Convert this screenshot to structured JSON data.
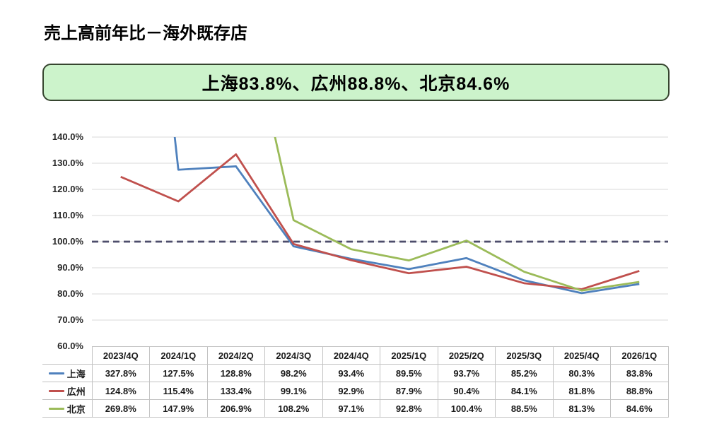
{
  "header": {
    "title": "売上高前年比－海外既存店"
  },
  "banner": {
    "text": "上海83.8%、広州88.8%、北京84.6%",
    "background": "#ccf3cb",
    "border_color": "#36452f"
  },
  "chart_data": {
    "type": "line",
    "title": "売上高前年比－海外既存店",
    "categories": [
      "2023/4Q",
      "2024/1Q",
      "2024/2Q",
      "2024/3Q",
      "2024/4Q",
      "2025/1Q",
      "2025/2Q",
      "2025/3Q",
      "2025/4Q",
      "2026/1Q"
    ],
    "series": [
      {
        "name": "上海",
        "color": "#4F81BD",
        "values": [
          327.8,
          127.5,
          128.8,
          98.2,
          93.4,
          89.5,
          93.7,
          85.2,
          80.3,
          83.8
        ]
      },
      {
        "name": "広州",
        "color": "#C0504D",
        "values": [
          124.8,
          115.4,
          133.4,
          99.1,
          92.9,
          87.9,
          90.4,
          84.1,
          81.8,
          88.8
        ]
      },
      {
        "name": "北京",
        "color": "#9BBB59",
        "values": [
          269.8,
          147.9,
          206.9,
          108.2,
          97.1,
          92.8,
          100.4,
          88.5,
          81.3,
          84.6
        ]
      }
    ],
    "y_axis": {
      "min": 60,
      "max": 140,
      "step": 10,
      "tick_labels": [
        "140.0%",
        "130.0%",
        "120.0%",
        "110.0%",
        "100.0%",
        "90.0%",
        "80.0%",
        "70.0%",
        "60.0%"
      ],
      "unit": "%"
    },
    "reference_line": {
      "value": 100,
      "style": "dashed",
      "color": "#4d4d6b"
    },
    "grid": true,
    "gridline_color": "#d9d9d9",
    "legend_position": "data-table-left",
    "data_table_shown": true,
    "value_format": "one_decimal_percent"
  }
}
